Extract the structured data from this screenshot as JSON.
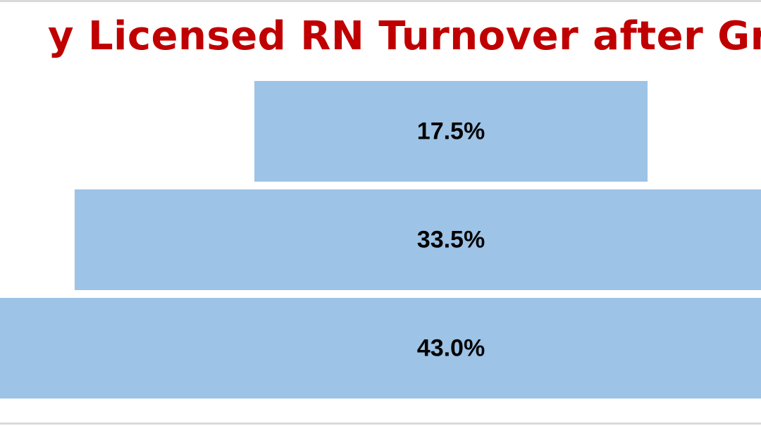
{
  "chart_data": {
    "type": "bar",
    "title": "y Licensed RN Turnover after Gradu",
    "orientation": "horizontal-funnel",
    "categories": [
      "",
      "",
      ""
    ],
    "values": [
      17.5,
      33.5,
      43.0
    ],
    "labels": [
      "17.5%",
      "33.5%",
      "43.0%"
    ],
    "unit": "%",
    "grid": false,
    "legend": "none"
  },
  "colors": {
    "title": "#c00000",
    "bar": "#9dc3e6",
    "label": "#000000",
    "rule": "#d9d9d9"
  }
}
